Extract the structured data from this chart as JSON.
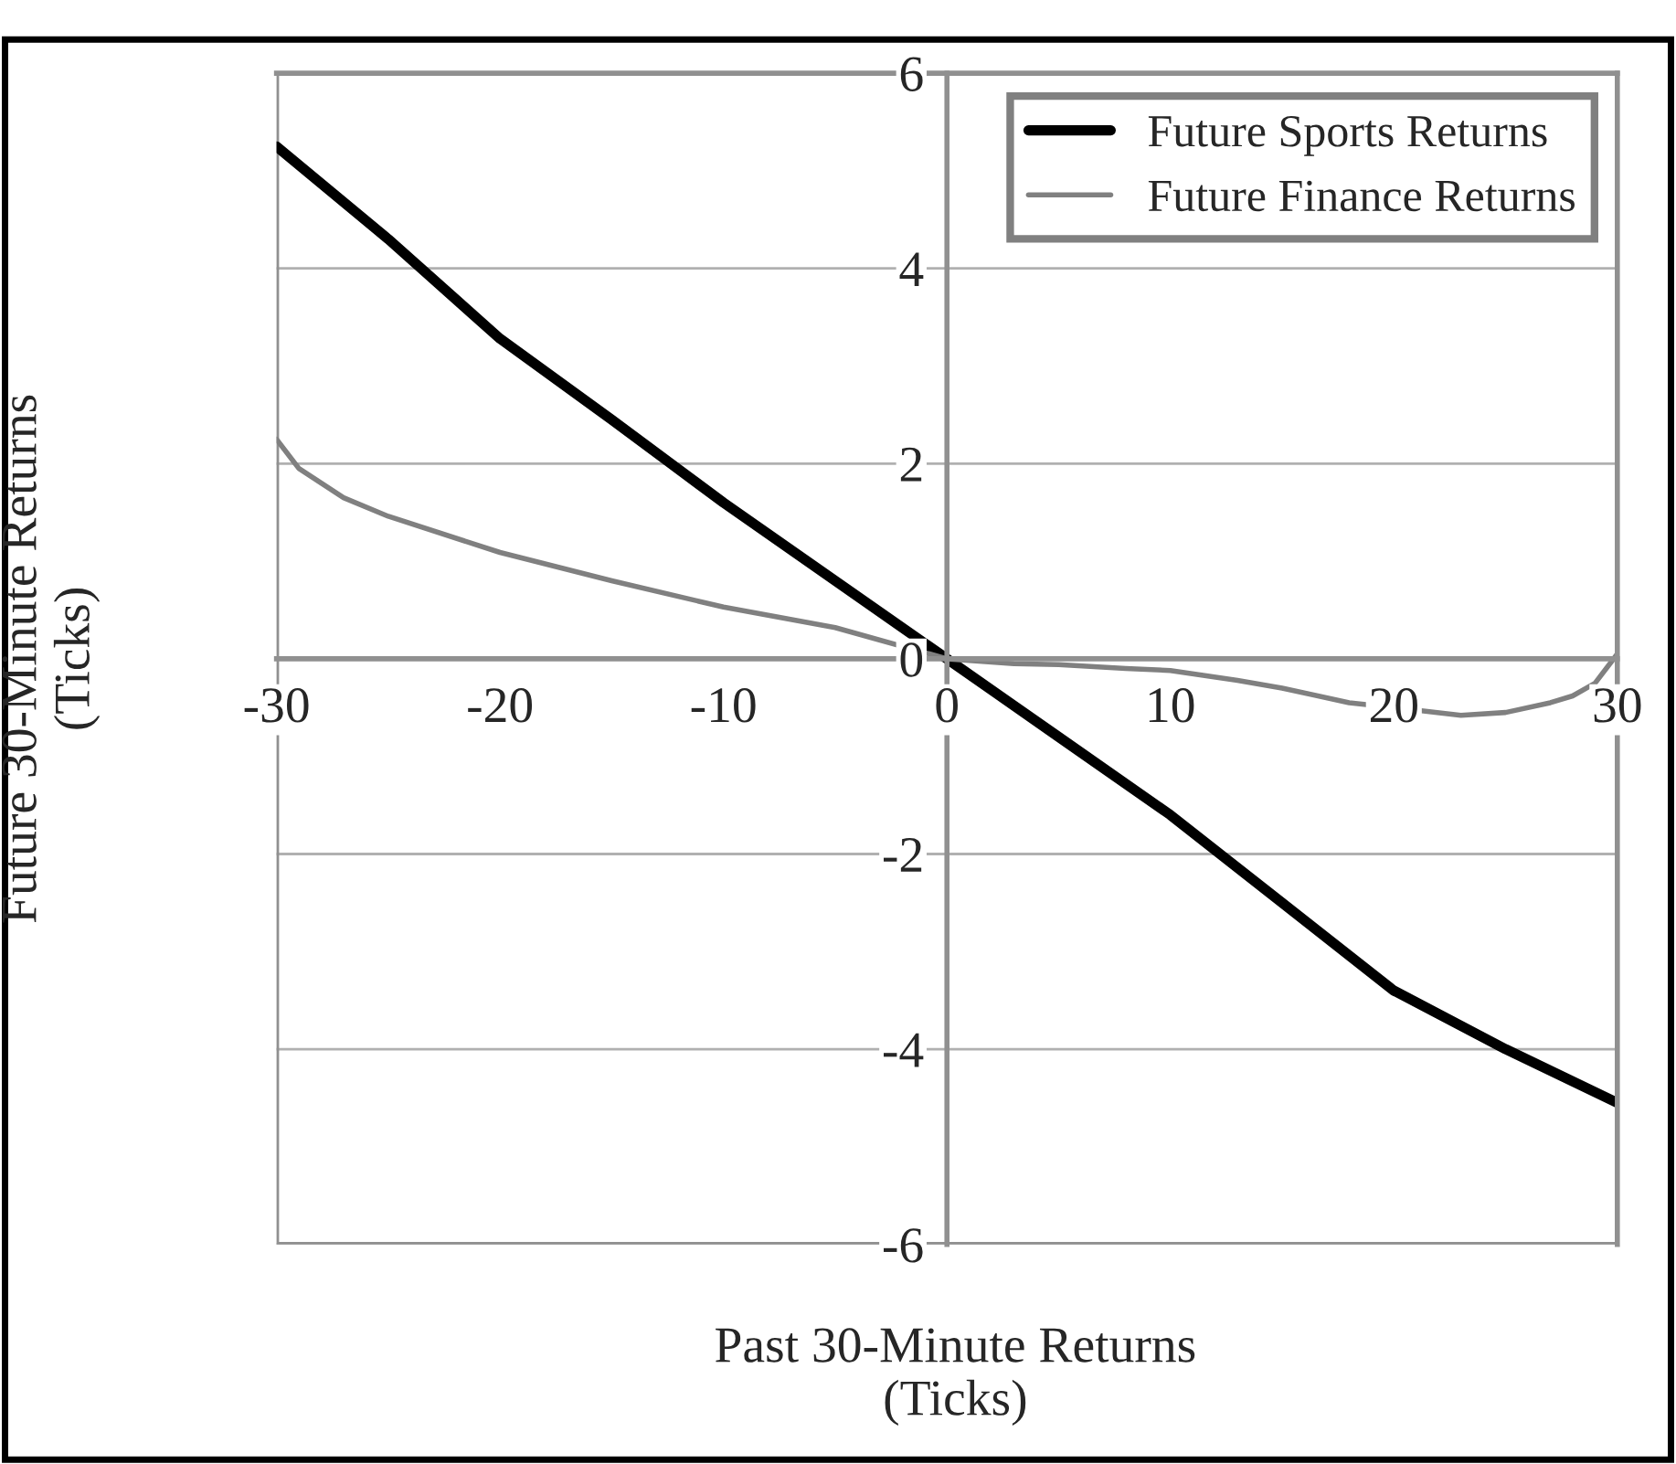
{
  "chart_data": {
    "type": "line",
    "xlabel": "Past 30-Minute Returns\n(Ticks)",
    "ylabel": "Future 30-Minute Returns\n(Ticks)",
    "xlim": [
      -30,
      30
    ],
    "ylim": [
      -6,
      6
    ],
    "xticks": [
      -30,
      -20,
      -10,
      0,
      10,
      20,
      30
    ],
    "yticks": [
      -6,
      -4,
      -2,
      0,
      2,
      4,
      6
    ],
    "grid": "y",
    "legend": "top right",
    "series": [
      {
        "name": "Future Sports Returns",
        "color": "#000000",
        "x": [
          -30,
          -25,
          -20,
          -15,
          -10,
          -5,
          0,
          5,
          10,
          15,
          20,
          25,
          30
        ],
        "values": [
          5.25,
          4.3,
          3.28,
          2.45,
          1.6,
          0.8,
          0.0,
          -0.8,
          -1.6,
          -2.5,
          -3.4,
          -4.0,
          -4.55
        ]
      },
      {
        "name": "Future Finance Returns",
        "color": "#808080",
        "x": [
          -30,
          -29,
          -27,
          -25,
          -20,
          -15,
          -10,
          -5,
          0,
          3,
          5,
          8,
          10,
          13,
          15,
          18,
          20,
          23,
          25,
          27,
          28,
          29,
          30
        ],
        "values": [
          2.25,
          1.95,
          1.65,
          1.46,
          1.09,
          0.8,
          0.53,
          0.32,
          0.0,
          -0.05,
          -0.06,
          -0.1,
          -0.12,
          -0.22,
          -0.3,
          -0.45,
          -0.5,
          -0.58,
          -0.55,
          -0.45,
          -0.38,
          -0.25,
          0.05
        ]
      }
    ]
  }
}
